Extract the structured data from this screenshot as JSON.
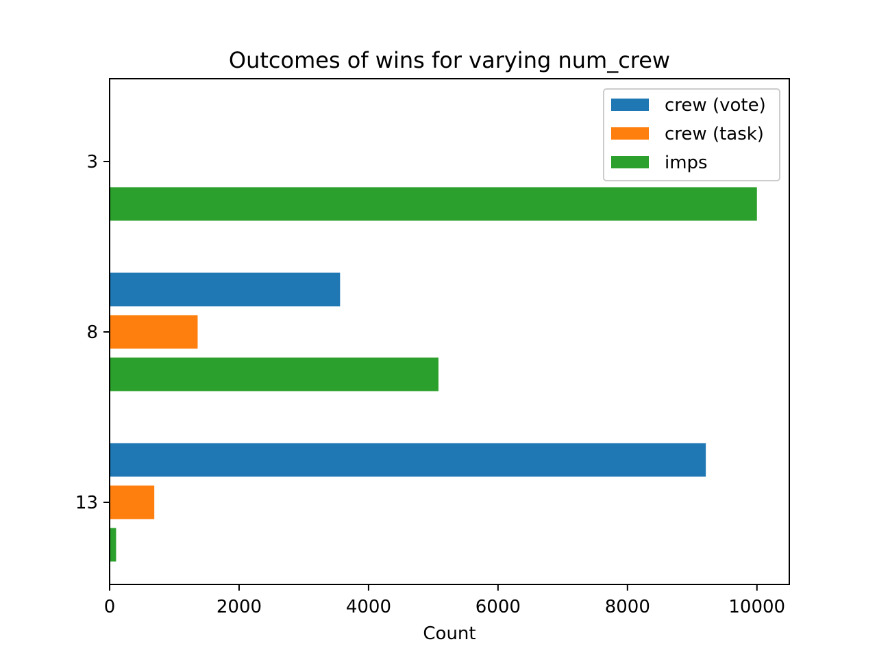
{
  "chart_data": {
    "type": "bar",
    "orientation": "horizontal",
    "title": "Outcomes of wins for varying num_crew",
    "xlabel": "Count",
    "ylabel": "",
    "categories": [
      "3",
      "8",
      "13"
    ],
    "xlim": [
      0,
      10500
    ],
    "xticks": [
      "0",
      "2000",
      "4000",
      "6000",
      "8000",
      "10000"
    ],
    "series": [
      {
        "name": "crew (vote)",
        "color": "#1f77b4",
        "values": [
          0,
          3560,
          9210
        ]
      },
      {
        "name": "crew (task)",
        "color": "#ff7f0e",
        "values": [
          0,
          1360,
          690
        ]
      },
      {
        "name": "imps",
        "color": "#2ca02c",
        "values": [
          10000,
          5080,
          100
        ]
      }
    ],
    "legend": "top-right",
    "grid": false
  }
}
